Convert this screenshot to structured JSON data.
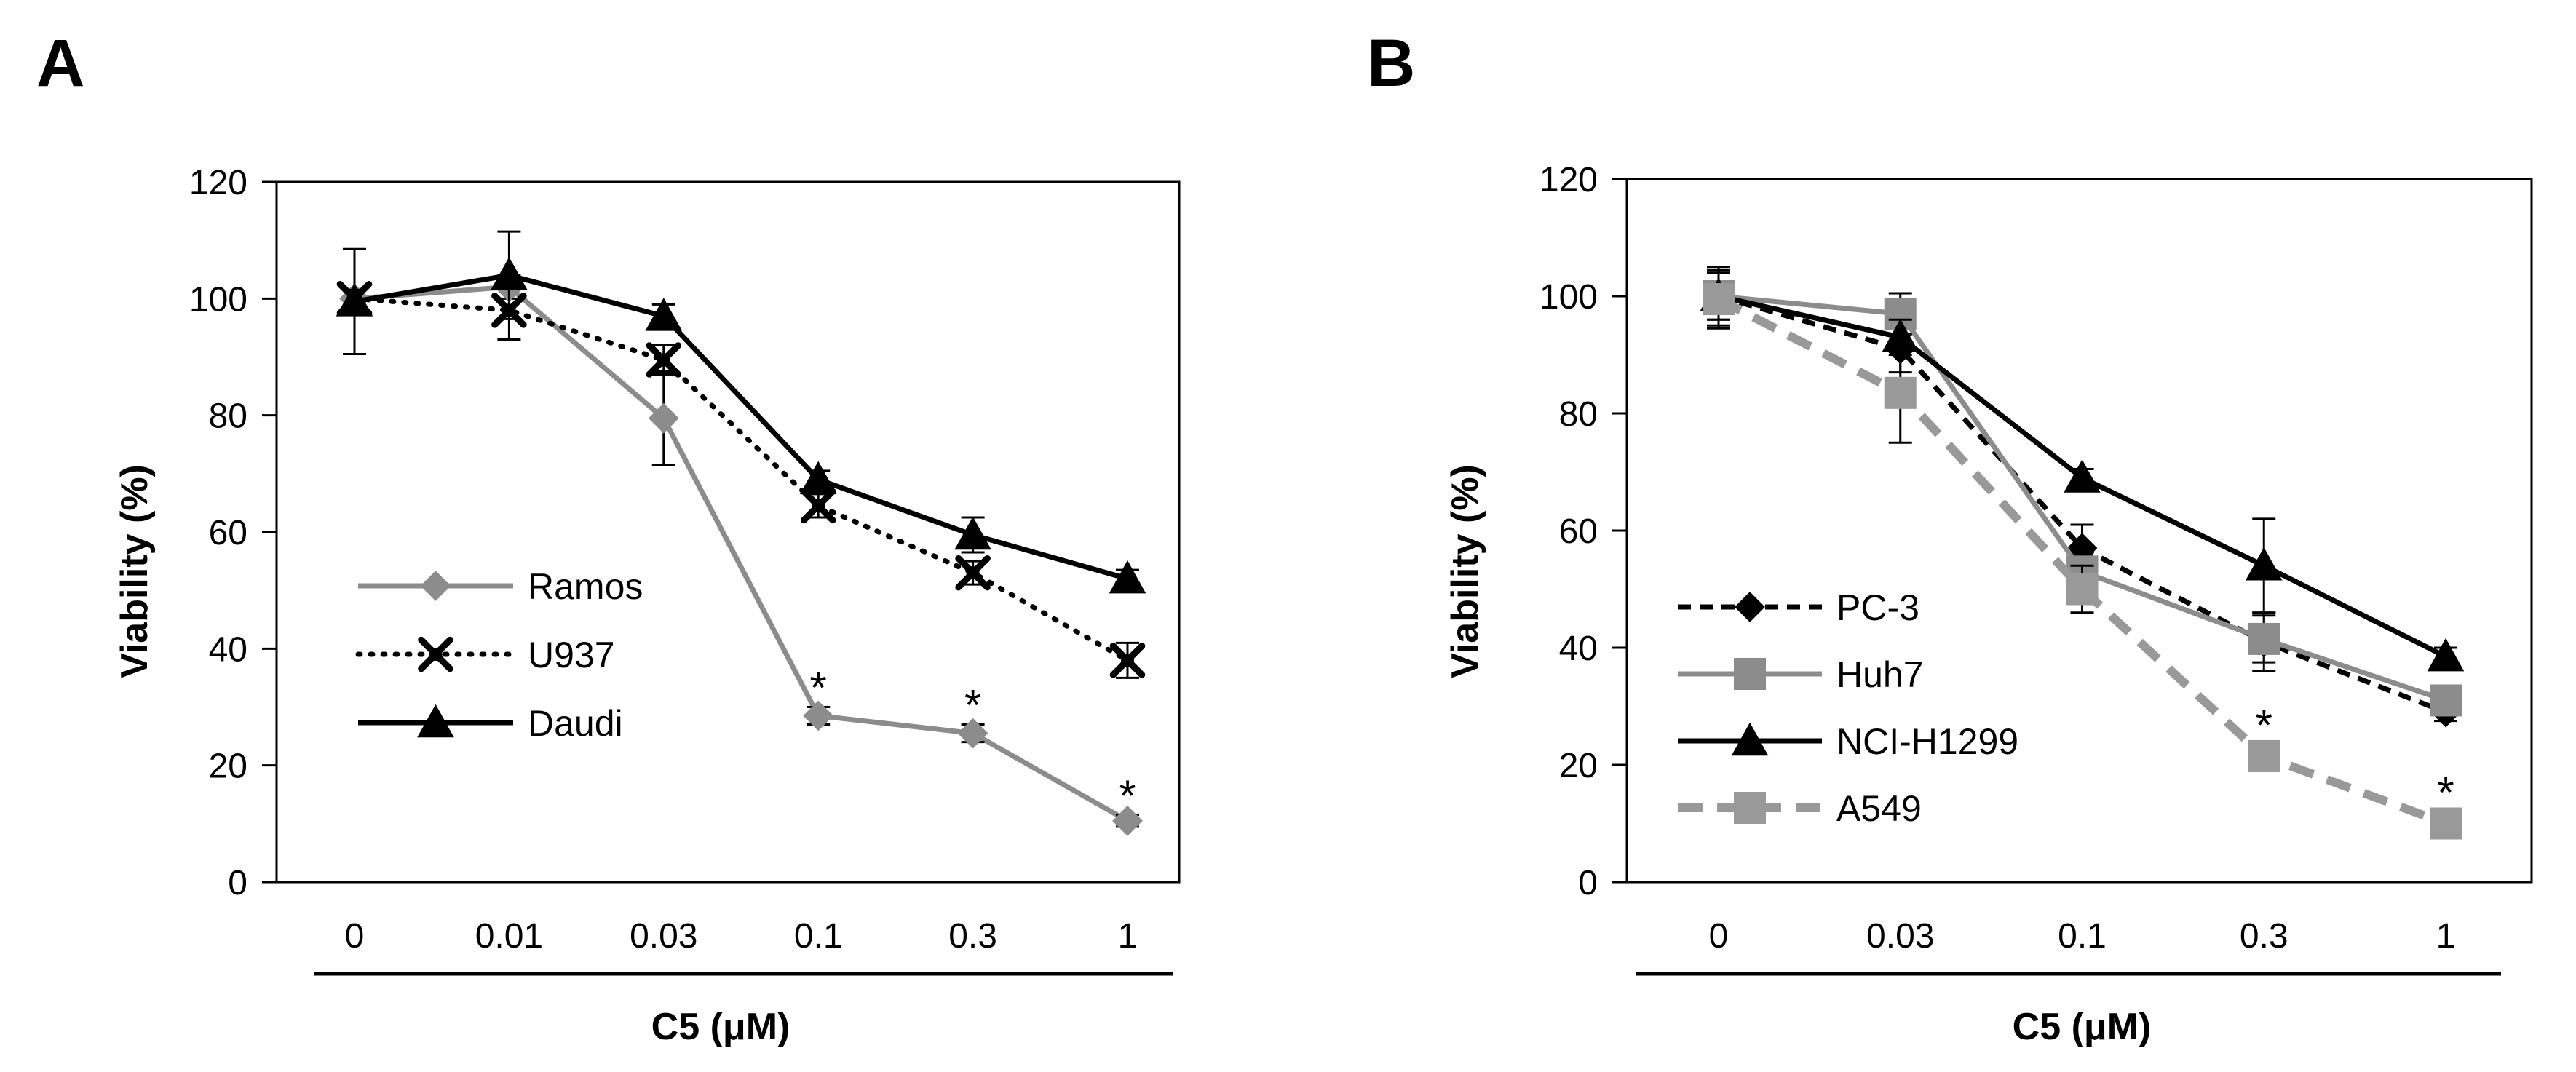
{
  "colors": {
    "black": "#000000",
    "gray": "#8c8c8c",
    "gray_light": "#999999"
  },
  "chart_data": [
    {
      "panel_label": "A",
      "type": "line",
      "ylabel": "Viability  (%)",
      "xlabel": "C5 (μM)",
      "ylim": [
        0,
        120
      ],
      "yticks": [
        "0",
        "20",
        "40",
        "60",
        "80",
        "100",
        "120"
      ],
      "categories": [
        "0",
        "0.01",
        "0.03",
        "0.1",
        "0.3",
        "1"
      ],
      "legend_position": "lower-left",
      "series": [
        {
          "name": "Ramos",
          "color": "#8c8c8c",
          "dash": "solid",
          "marker": "diamond",
          "values": [
            100,
            102,
            79.5,
            28.5,
            25.5,
            10.5
          ],
          "errors": [
            1.5,
            2,
            8,
            1.5,
            1.5,
            1
          ],
          "stars": [
            false,
            false,
            false,
            true,
            true,
            true
          ]
        },
        {
          "name": "U937",
          "color": "#000000",
          "dash": "dotted",
          "marker": "x",
          "values": [
            100,
            98,
            89.5,
            64.5,
            53,
            38
          ],
          "errors": [
            1.5,
            5,
            2.5,
            2,
            2,
            3
          ],
          "stars": [
            false,
            false,
            false,
            false,
            false,
            false
          ]
        },
        {
          "name": "Daudi",
          "color": "#000000",
          "dash": "solid",
          "marker": "triangle",
          "values": [
            99.5,
            104,
            97,
            69,
            59.5,
            52
          ],
          "errors": [
            9,
            7.5,
            2,
            1.5,
            3,
            1.5
          ],
          "stars": [
            false,
            false,
            false,
            false,
            false,
            false
          ]
        }
      ]
    },
    {
      "panel_label": "B",
      "type": "line",
      "ylabel": "Viability  (%)",
      "xlabel": "C5 (μM)",
      "ylim": [
        0,
        120
      ],
      "yticks": [
        "0",
        "20",
        "40",
        "60",
        "80",
        "100",
        "120"
      ],
      "categories": [
        "0",
        "0.03",
        "0.1",
        "0.3",
        "1"
      ],
      "legend_position": "lower-left",
      "series": [
        {
          "name": "PC-3",
          "color": "#000000",
          "dash": "dashed",
          "marker": "diamond",
          "values": [
            100,
            91,
            57,
            41,
            29
          ],
          "errors": [
            5,
            4,
            4,
            5,
            1.5
          ],
          "stars": [
            false,
            false,
            false,
            false,
            false
          ]
        },
        {
          "name": "Huh7",
          "color": "#8c8c8c",
          "dash": "solid",
          "marker": "square",
          "values": [
            100,
            97,
            53,
            41.5,
            31
          ],
          "errors": [
            4,
            3.5,
            4,
            4,
            1.5
          ],
          "stars": [
            false,
            false,
            false,
            false,
            false
          ]
        },
        {
          "name": "NCI-H1299",
          "color": "#000000",
          "dash": "solid",
          "marker": "triangle",
          "values": [
            100,
            93,
            69,
            54,
            38.5
          ],
          "errors": [
            4,
            3,
            1.5,
            8,
            1.5
          ],
          "stars": [
            false,
            false,
            false,
            false,
            false
          ]
        },
        {
          "name": "A549",
          "color": "#999999",
          "dash": "longdash",
          "marker": "square",
          "values": [
            99.5,
            83.5,
            50,
            21.5,
            10
          ],
          "errors": [
            5,
            8.5,
            4,
            2,
            2
          ],
          "stars": [
            false,
            false,
            false,
            true,
            true
          ]
        }
      ]
    }
  ]
}
